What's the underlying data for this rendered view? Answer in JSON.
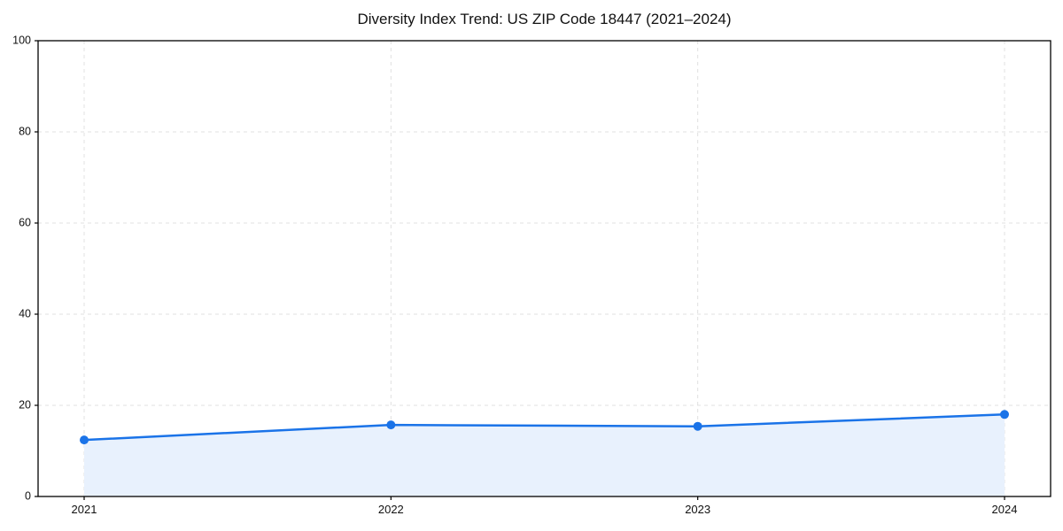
{
  "chart_data": {
    "type": "line",
    "title": "Diversity Index Trend: US ZIP Code 18447 (2021–2024)",
    "categories": [
      "2021",
      "2022",
      "2023",
      "2024"
    ],
    "series": [
      {
        "name": "Diversity Index",
        "values": [
          12.4,
          15.7,
          15.4,
          18.0
        ]
      }
    ],
    "xlabel": "",
    "ylabel": "",
    "ylim": [
      0,
      100
    ],
    "yticks": [
      0,
      20,
      40,
      60,
      80,
      100
    ],
    "grid": "dashed, both axes",
    "legend": "none",
    "area": true,
    "colors": {
      "line": "#1a73e8",
      "marker": "#1a73e8",
      "area_fill": "#e8f1fd",
      "grid": "#e0e0e0",
      "spine": "#000000",
      "text": "#111111",
      "background": "#ffffff"
    }
  }
}
